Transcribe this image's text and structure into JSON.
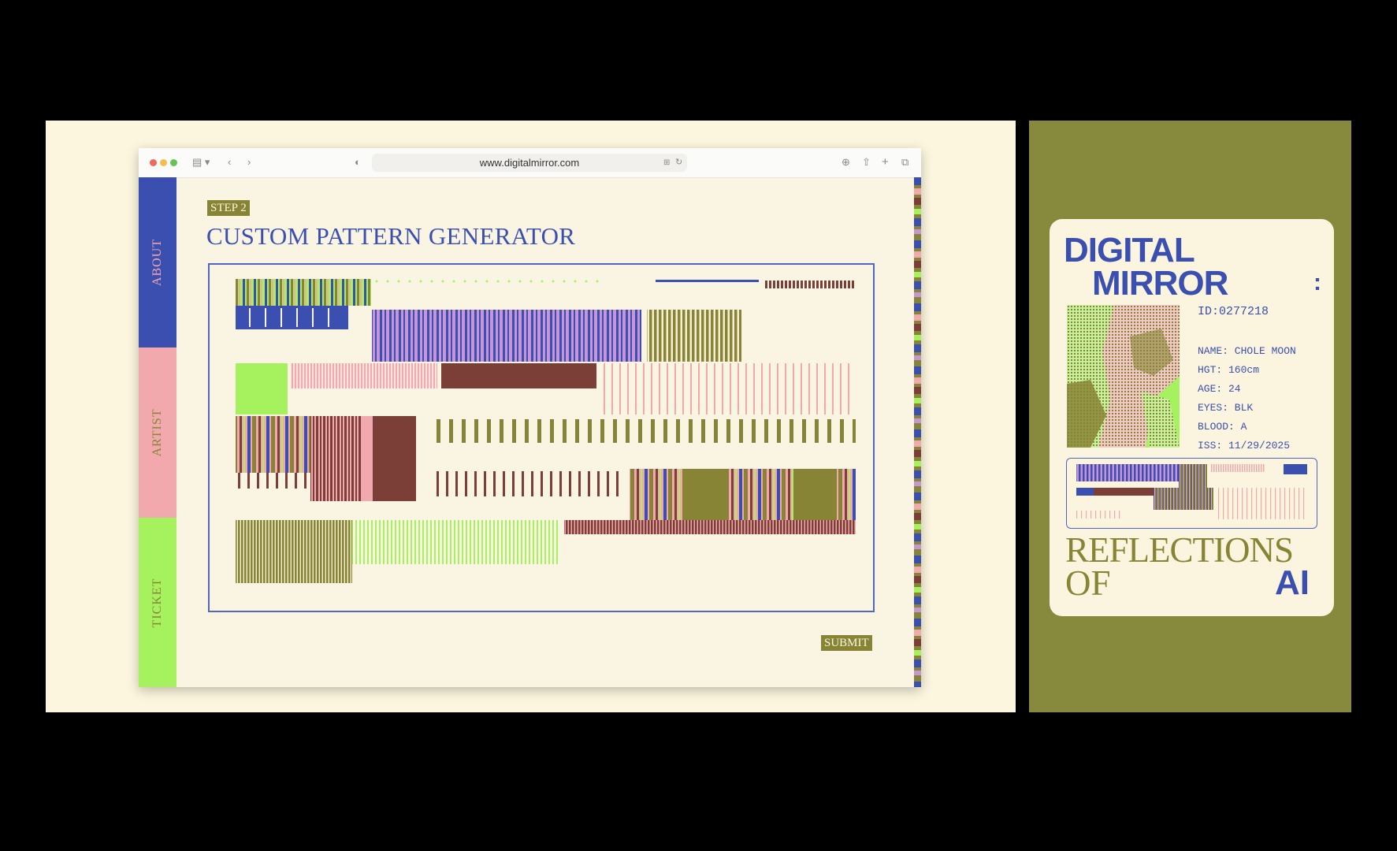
{
  "browser": {
    "url": "www.digitalmirror.com"
  },
  "nav": {
    "items": [
      {
        "label": "ABOUT"
      },
      {
        "label": "ARTIST"
      },
      {
        "label": "TICKET"
      }
    ]
  },
  "main": {
    "step_label": "STEP 2",
    "title": "CUSTOM PATTERN GENERATOR",
    "submit_label": "SUBMIT"
  },
  "card": {
    "title_line1": "DIGITAL",
    "title_line2": "MIRROR",
    "colon": ":",
    "id": "ID:0277218",
    "fields": [
      "NAME: CHOLE MOON",
      "HGT: 160cm",
      "AGE: 24",
      "EYES: BLK",
      "BLOOD: A",
      "ISS: 11/29/2025"
    ],
    "tagline_line1": "REFLECTIONS",
    "tagline_of": "OF",
    "tagline_ai": "AI"
  },
  "colors": {
    "blue": "#3a4fb0",
    "olive": "#878535",
    "pink": "#f2a9ae",
    "green": "#a6f25e",
    "brown": "#7b3f37",
    "lavender": "#c894d8",
    "cream": "#faf4e2"
  },
  "icons": [
    "sidebar-toggle-icon",
    "back-icon",
    "forward-icon",
    "shield-icon",
    "translate-icon",
    "reload-icon",
    "download-icon",
    "share-icon",
    "new-tab-icon",
    "tabs-overview-icon"
  ]
}
